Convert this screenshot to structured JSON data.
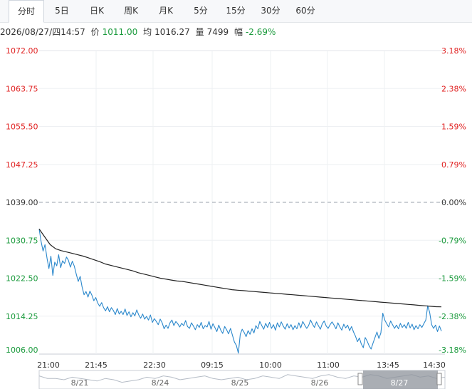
{
  "tabs": [
    {
      "label": "分时",
      "active": true
    },
    {
      "label": "5日",
      "active": false
    },
    {
      "label": "日K",
      "active": false
    },
    {
      "label": "周K",
      "active": false
    },
    {
      "label": "月K",
      "active": false
    },
    {
      "label": "5分",
      "active": false
    },
    {
      "label": "15分",
      "active": false
    },
    {
      "label": "30分",
      "active": false
    },
    {
      "label": "60分",
      "active": false
    }
  ],
  "info": {
    "datetime": "2026/08/27/四14:57",
    "price_label": "价",
    "price": "1011.00",
    "avg_label": "均",
    "avg": "1016.27",
    "volume_label": "量",
    "volume": "7499",
    "change_label": "幅",
    "change": "-2.69%"
  },
  "colors": {
    "up": "#e02020",
    "down": "#1a9a3c",
    "price_line": "#2b88cc",
    "avg_line": "#222222",
    "neutral": "#333333"
  },
  "chart_data": {
    "type": "line",
    "title": "",
    "y_ticks": [
      "1072.00",
      "1063.75",
      "1055.50",
      "1047.25",
      "1039.00",
      "1030.75",
      "1022.50",
      "1014.25",
      "1006.00"
    ],
    "pct_ticks": [
      "3.18%",
      "2.38%",
      "1.59%",
      "0.79%",
      "0.00%",
      "-0.79%",
      "-1.59%",
      "-2.38%",
      "-3.18%"
    ],
    "ylim": [
      1006.0,
      1072.0
    ],
    "prev_close": 1039.0,
    "x_ticks": [
      "21:00",
      "21:45",
      "22:30",
      "09:15",
      "10:00",
      "11:00",
      "13:45",
      "14:30"
    ],
    "series": [
      {
        "key": "price",
        "values": [
          1033.2,
          1030.5,
          1028.4,
          1029.8,
          1026.9,
          1024.6,
          1027.3,
          1023.1,
          1026.0,
          1025.2,
          1027.6,
          1024.8,
          1026.3,
          1025.7,
          1027.1,
          1026.4,
          1024.9,
          1026.2,
          1025.1,
          1023.4,
          1021.8,
          1022.9,
          1020.6,
          1018.9,
          1019.6,
          1018.4,
          1019.7,
          1018.8,
          1017.6,
          1018.3,
          1017.1,
          1016.4,
          1017.2,
          1016.1,
          1015.4,
          1016.3,
          1015.2,
          1016.1,
          1015.5,
          1014.6,
          1015.9,
          1014.7,
          1015.3,
          1014.6,
          1015.8,
          1014.4,
          1015.2,
          1014.1,
          1015.0,
          1014.3,
          1015.6,
          1014.5,
          1013.8,
          1014.7,
          1013.6,
          1014.2,
          1013.4,
          1014.5,
          1012.9,
          1013.7,
          1013.1,
          1012.4,
          1013.6,
          1012.8,
          1011.5,
          1012.3,
          1011.6,
          1012.8,
          1013.4,
          1012.2,
          1013.1,
          1012.6,
          1011.9,
          1012.7,
          1012.2,
          1013.3,
          1012.0,
          1011.6,
          1012.8,
          1012.1,
          1011.3,
          1012.4,
          1011.8,
          1012.9,
          1011.5,
          1012.2,
          1011.9,
          1013.1,
          1011.4,
          1012.6,
          1011.8,
          1010.9,
          1012.3,
          1011.2,
          1010.5,
          1012.0,
          1011.3,
          1010.4,
          1011.6,
          1010.1,
          1008.6,
          1007.9,
          1006.2,
          1010.3,
          1011.4,
          1010.7,
          1009.8,
          1011.1,
          1010.3,
          1011.5,
          1010.6,
          1012.2,
          1011.5,
          1013.1,
          1012.2,
          1011.4,
          1012.7,
          1011.8,
          1012.9,
          1011.6,
          1012.4,
          1011.2,
          1012.8,
          1011.9,
          1013.0,
          1012.1,
          1011.4,
          1012.6,
          1011.7,
          1012.4,
          1011.3,
          1012.2,
          1011.5,
          1012.8,
          1011.7,
          1013.1,
          1012.3,
          1011.6,
          1012.2,
          1013.4,
          1012.5,
          1011.8,
          1013.0,
          1012.2,
          1011.4,
          1012.6,
          1013.2,
          1012.1,
          1011.6,
          1012.4,
          1013.0,
          1012.3,
          1011.5,
          1012.8,
          1011.9,
          1011.2,
          1012.5,
          1011.7,
          1012.3,
          1011.1,
          1012.0,
          1010.8,
          1009.9,
          1008.7,
          1009.5,
          1008.2,
          1007.4,
          1009.6,
          1008.8,
          1007.8,
          1007.1,
          1008.4,
          1009.6,
          1010.8,
          1009.4,
          1010.6,
          1014.9,
          1013.4,
          1012.6,
          1011.9,
          1013.2,
          1012.4,
          1011.6,
          1012.3,
          1011.5,
          1012.7,
          1011.8,
          1012.4,
          1011.6,
          1012.9,
          1011.7,
          1012.5,
          1011.3,
          1012.2,
          1011.5,
          1012.4,
          1011.8,
          1012.6,
          1013.4,
          1016.5,
          1015.1,
          1012.4,
          1011.6,
          1012.3,
          1010.9,
          1012.1,
          1011.0
        ]
      },
      {
        "key": "avg",
        "values": [
          1033.2,
          1031.5,
          1029.8,
          1028.9,
          1028.5,
          1028.2,
          1027.9,
          1027.6,
          1027.3,
          1026.9,
          1026.5,
          1026.1,
          1025.6,
          1025.3,
          1025.0,
          1024.7,
          1024.4,
          1024.1,
          1023.7,
          1023.4,
          1023.1,
          1022.8,
          1022.5,
          1022.3,
          1022.1,
          1021.9,
          1021.8,
          1021.6,
          1021.4,
          1021.2,
          1021.0,
          1020.8,
          1020.6,
          1020.4,
          1020.2,
          1020.0,
          1019.9,
          1019.8,
          1019.7,
          1019.6,
          1019.5,
          1019.4,
          1019.3,
          1019.2,
          1019.1,
          1019.0,
          1018.9,
          1018.8,
          1018.7,
          1018.6,
          1018.5,
          1018.4,
          1018.3,
          1018.2,
          1018.1,
          1018.0,
          1017.9,
          1017.8,
          1017.7,
          1017.6,
          1017.5,
          1017.4,
          1017.3,
          1017.2,
          1017.1,
          1017.0,
          1016.9,
          1016.8,
          1016.7,
          1016.6,
          1016.5,
          1016.4,
          1016.3,
          1016.27
        ]
      }
    ]
  },
  "navigator": {
    "dates": [
      "8/21",
      "8/24",
      "8/25",
      "8/26",
      "8/27"
    ]
  }
}
